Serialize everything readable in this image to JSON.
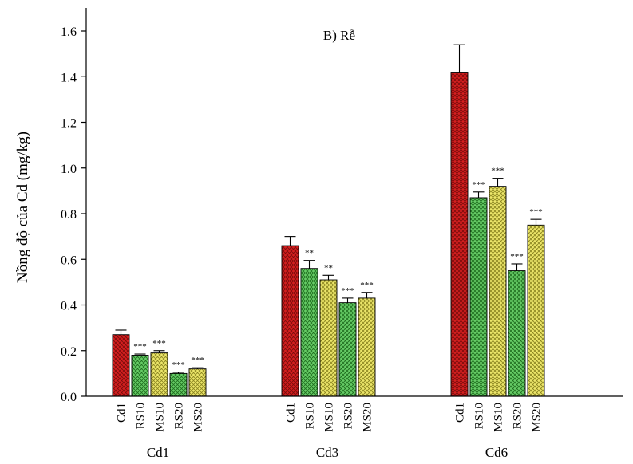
{
  "chart_data": {
    "type": "bar",
    "title": "B) Rễ",
    "ylabel": "Nồng độ của Cd (mg/kg)",
    "xlabel": "",
    "ylim": [
      0,
      1.7
    ],
    "yticks": [
      "0.0",
      "0.2",
      "0.4",
      "0.6",
      "0.8",
      "1.0",
      "1.2",
      "1.4",
      "1.6"
    ],
    "grid": false,
    "legend": "none",
    "groups": [
      {
        "name": "Cd1",
        "bars": [
          {
            "label": "Cd1",
            "value": 0.27,
            "error": 0.02,
            "sig": ""
          },
          {
            "label": "RS10",
            "value": 0.18,
            "error": 0.005,
            "sig": "***"
          },
          {
            "label": "MS10",
            "value": 0.19,
            "error": 0.01,
            "sig": "***"
          },
          {
            "label": "RS20",
            "value": 0.1,
            "error": 0.005,
            "sig": "***"
          },
          {
            "label": "MS20",
            "value": 0.12,
            "error": 0.005,
            "sig": "***"
          }
        ]
      },
      {
        "name": "Cd3",
        "bars": [
          {
            "label": "Cd1",
            "value": 0.66,
            "error": 0.04,
            "sig": ""
          },
          {
            "label": "RS10",
            "value": 0.56,
            "error": 0.035,
            "sig": "**"
          },
          {
            "label": "MS10",
            "value": 0.51,
            "error": 0.02,
            "sig": "**"
          },
          {
            "label": "RS20",
            "value": 0.41,
            "error": 0.02,
            "sig": "***"
          },
          {
            "label": "MS20",
            "value": 0.43,
            "error": 0.025,
            "sig": "***"
          }
        ]
      },
      {
        "name": "Cd6",
        "bars": [
          {
            "label": "Cd1",
            "value": 1.42,
            "error": 0.12,
            "sig": ""
          },
          {
            "label": "RS10",
            "value": 0.87,
            "error": 0.025,
            "sig": "***"
          },
          {
            "label": "MS10",
            "value": 0.92,
            "error": 0.035,
            "sig": "***"
          },
          {
            "label": "RS20",
            "value": 0.55,
            "error": 0.03,
            "sig": "***"
          },
          {
            "label": "MS20",
            "value": 0.75,
            "error": 0.025,
            "sig": "***"
          }
        ]
      }
    ],
    "colors": {
      "Cd1": "#d41f1f",
      "RS10": "#5cc25c",
      "MS10": "#e8e060",
      "RS20": "#5cc25c",
      "MS20": "#e8e060"
    }
  }
}
